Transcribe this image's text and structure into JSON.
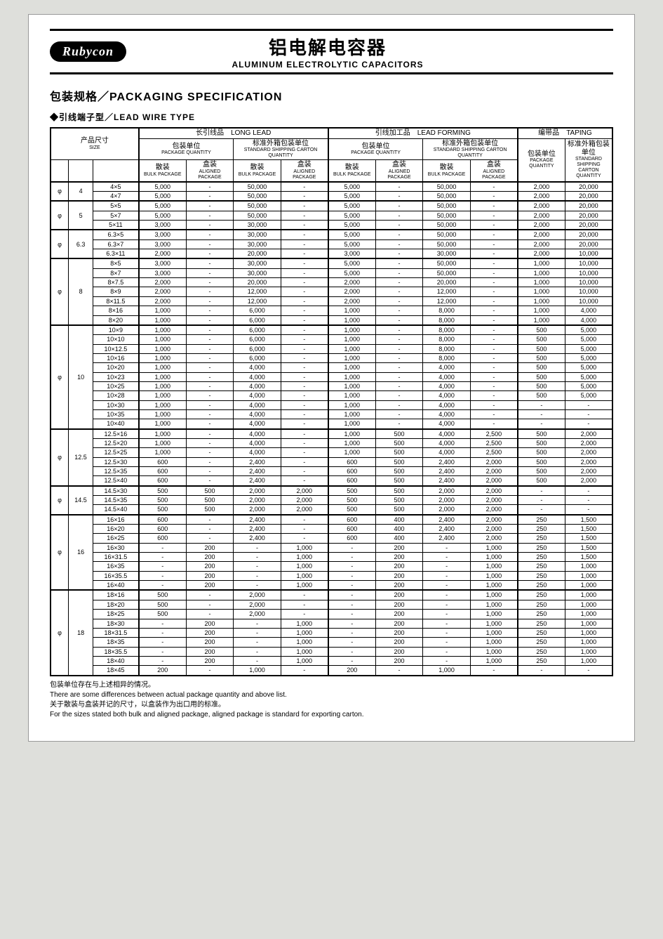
{
  "brand": "Rubycon",
  "title_cn": "铝电解电容器",
  "title_en": "ALUMINUM ELECTROLYTIC CAPACITORS",
  "section_title": "包装规格／PACKAGING SPECIFICATION",
  "sub_title": "◆引线端子型／LEAD WIRE TYPE",
  "headers": {
    "size_cn": "产品尺寸",
    "size_en": "SIZE",
    "long_lead_cn": "长引线品",
    "long_lead_en": "LONG LEAD",
    "lead_forming_cn": "引线加工品",
    "lead_forming_en": "LEAD FORMING",
    "taping_cn": "编带品",
    "taping_en": "TAPING",
    "pkg_qty_cn": "包装单位",
    "pkg_qty_en": "PACKAGE QUANTITY",
    "ship_qty_cn": "标准外箱包装单位",
    "ship_qty_en": "STANDARD SHIPPING CARTON QUANTITY",
    "tape_pkg_cn": "包装单位",
    "tape_pkg_en": "PACKAGE QUANTITY",
    "tape_ship_cn": "标准外箱包装单位",
    "tape_ship_en": "STANDARD SHIPPING CARTON QUANTITY",
    "bulk_cn": "散装",
    "bulk_en": "BULK PACKAGE",
    "aligned_cn": "盒装",
    "aligned_en": "ALIGNED PACKAGE"
  },
  "groups": [
    {
      "phi": "φ",
      "dia": "4",
      "rows": [
        {
          "size": "4×5",
          "v": [
            "5,000",
            "-",
            "50,000",
            "-",
            "5,000",
            "-",
            "50,000",
            "-",
            "2,000",
            "20,000"
          ]
        },
        {
          "size": "4×7",
          "v": [
            "5,000",
            "-",
            "50,000",
            "-",
            "5,000",
            "-",
            "50,000",
            "-",
            "2,000",
            "20,000"
          ]
        }
      ]
    },
    {
      "phi": "φ",
      "dia": "5",
      "rows": [
        {
          "size": "5×5",
          "v": [
            "5,000",
            "-",
            "50,000",
            "-",
            "5,000",
            "-",
            "50,000",
            "-",
            "2,000",
            "20,000"
          ]
        },
        {
          "size": "5×7",
          "v": [
            "5,000",
            "-",
            "50,000",
            "-",
            "5,000",
            "-",
            "50,000",
            "-",
            "2,000",
            "20,000"
          ]
        },
        {
          "size": "5×11",
          "v": [
            "3,000",
            "-",
            "30,000",
            "-",
            "5,000",
            "-",
            "50,000",
            "-",
            "2,000",
            "20,000"
          ]
        }
      ]
    },
    {
      "phi": "φ",
      "dia": "6.3",
      "rows": [
        {
          "size": "6.3×5",
          "v": [
            "3,000",
            "-",
            "30,000",
            "-",
            "5,000",
            "-",
            "50,000",
            "-",
            "2,000",
            "20,000"
          ]
        },
        {
          "size": "6.3×7",
          "v": [
            "3,000",
            "-",
            "30,000",
            "-",
            "5,000",
            "-",
            "50,000",
            "-",
            "2,000",
            "20,000"
          ]
        },
        {
          "size": "6.3×11",
          "v": [
            "2,000",
            "-",
            "20,000",
            "-",
            "3,000",
            "-",
            "30,000",
            "-",
            "2,000",
            "10,000"
          ]
        }
      ]
    },
    {
      "phi": "φ",
      "dia": "8",
      "rows": [
        {
          "size": "8×5",
          "v": [
            "3,000",
            "-",
            "30,000",
            "-",
            "5,000",
            "-",
            "50,000",
            "-",
            "1,000",
            "10,000"
          ]
        },
        {
          "size": "8×7",
          "v": [
            "3,000",
            "-",
            "30,000",
            "-",
            "5,000",
            "-",
            "50,000",
            "-",
            "1,000",
            "10,000"
          ]
        },
        {
          "size": "8×7.5",
          "v": [
            "2,000",
            "-",
            "20,000",
            "-",
            "2,000",
            "-",
            "20,000",
            "-",
            "1,000",
            "10,000"
          ]
        },
        {
          "size": "8×9",
          "v": [
            "2,000",
            "-",
            "12,000",
            "-",
            "2,000",
            "-",
            "12,000",
            "-",
            "1,000",
            "10,000"
          ]
        },
        {
          "size": "8×11.5",
          "v": [
            "2,000",
            "-",
            "12,000",
            "-",
            "2,000",
            "-",
            "12,000",
            "-",
            "1,000",
            "10,000"
          ]
        },
        {
          "size": "8×16",
          "v": [
            "1,000",
            "-",
            "6,000",
            "-",
            "1,000",
            "-",
            "8,000",
            "-",
            "1,000",
            "4,000"
          ]
        },
        {
          "size": "8×20",
          "v": [
            "1,000",
            "-",
            "6,000",
            "-",
            "1,000",
            "-",
            "8,000",
            "-",
            "1,000",
            "4,000"
          ]
        }
      ]
    },
    {
      "phi": "φ",
      "dia": "10",
      "rows": [
        {
          "size": "10×9",
          "v": [
            "1,000",
            "-",
            "6,000",
            "-",
            "1,000",
            "-",
            "8,000",
            "-",
            "500",
            "5,000"
          ]
        },
        {
          "size": "10×10",
          "v": [
            "1,000",
            "-",
            "6,000",
            "-",
            "1,000",
            "-",
            "8,000",
            "-",
            "500",
            "5,000"
          ]
        },
        {
          "size": "10×12.5",
          "v": [
            "1,000",
            "-",
            "6,000",
            "-",
            "1,000",
            "-",
            "8,000",
            "-",
            "500",
            "5,000"
          ]
        },
        {
          "size": "10×16",
          "v": [
            "1,000",
            "-",
            "6,000",
            "-",
            "1,000",
            "-",
            "8,000",
            "-",
            "500",
            "5,000"
          ]
        },
        {
          "size": "10×20",
          "v": [
            "1,000",
            "-",
            "4,000",
            "-",
            "1,000",
            "-",
            "4,000",
            "-",
            "500",
            "5,000"
          ]
        },
        {
          "size": "10×23",
          "v": [
            "1,000",
            "-",
            "4,000",
            "-",
            "1,000",
            "-",
            "4,000",
            "-",
            "500",
            "5,000"
          ]
        },
        {
          "size": "10×25",
          "v": [
            "1,000",
            "-",
            "4,000",
            "-",
            "1,000",
            "-",
            "4,000",
            "-",
            "500",
            "5,000"
          ]
        },
        {
          "size": "10×28",
          "v": [
            "1,000",
            "-",
            "4,000",
            "-",
            "1,000",
            "-",
            "4,000",
            "-",
            "500",
            "5,000"
          ]
        },
        {
          "size": "10×30",
          "v": [
            "1,000",
            "-",
            "4,000",
            "-",
            "1,000",
            "-",
            "4,000",
            "-",
            "-",
            "-"
          ]
        },
        {
          "size": "10×35",
          "v": [
            "1,000",
            "-",
            "4,000",
            "-",
            "1,000",
            "-",
            "4,000",
            "-",
            "-",
            "-"
          ]
        },
        {
          "size": "10×40",
          "v": [
            "1,000",
            "-",
            "4,000",
            "-",
            "1,000",
            "-",
            "4,000",
            "-",
            "-",
            "-"
          ]
        }
      ]
    },
    {
      "phi": "φ",
      "dia": "12.5",
      "rows": [
        {
          "size": "12.5×16",
          "v": [
            "1,000",
            "-",
            "4,000",
            "-",
            "1,000",
            "500",
            "4,000",
            "2,500",
            "500",
            "2,000"
          ]
        },
        {
          "size": "12.5×20",
          "v": [
            "1,000",
            "-",
            "4,000",
            "-",
            "1,000",
            "500",
            "4,000",
            "2,500",
            "500",
            "2,000"
          ]
        },
        {
          "size": "12.5×25",
          "v": [
            "1,000",
            "-",
            "4,000",
            "-",
            "1,000",
            "500",
            "4,000",
            "2,500",
            "500",
            "2,000"
          ]
        },
        {
          "size": "12.5×30",
          "v": [
            "600",
            "-",
            "2,400",
            "-",
            "600",
            "500",
            "2,400",
            "2,000",
            "500",
            "2,000"
          ]
        },
        {
          "size": "12.5×35",
          "v": [
            "600",
            "-",
            "2,400",
            "-",
            "600",
            "500",
            "2,400",
            "2,000",
            "500",
            "2,000"
          ]
        },
        {
          "size": "12.5×40",
          "v": [
            "600",
            "-",
            "2,400",
            "-",
            "600",
            "500",
            "2,400",
            "2,000",
            "500",
            "2,000"
          ]
        }
      ]
    },
    {
      "phi": "φ",
      "dia": "14.5",
      "rows": [
        {
          "size": "14.5×30",
          "v": [
            "500",
            "500",
            "2,000",
            "2,000",
            "500",
            "500",
            "2,000",
            "2,000",
            "-",
            "-"
          ]
        },
        {
          "size": "14.5×35",
          "v": [
            "500",
            "500",
            "2,000",
            "2,000",
            "500",
            "500",
            "2,000",
            "2,000",
            "-",
            "-"
          ]
        },
        {
          "size": "14.5×40",
          "v": [
            "500",
            "500",
            "2,000",
            "2,000",
            "500",
            "500",
            "2,000",
            "2,000",
            "-",
            "-"
          ]
        }
      ]
    },
    {
      "phi": "φ",
      "dia": "16",
      "rows": [
        {
          "size": "16×16",
          "v": [
            "600",
            "-",
            "2,400",
            "-",
            "600",
            "400",
            "2,400",
            "2,000",
            "250",
            "1,500"
          ]
        },
        {
          "size": "16×20",
          "v": [
            "600",
            "-",
            "2,400",
            "-",
            "600",
            "400",
            "2,400",
            "2,000",
            "250",
            "1,500"
          ]
        },
        {
          "size": "16×25",
          "v": [
            "600",
            "-",
            "2,400",
            "-",
            "600",
            "400",
            "2,400",
            "2,000",
            "250",
            "1,500"
          ]
        },
        {
          "size": "16×30",
          "v": [
            "-",
            "200",
            "-",
            "1,000",
            "-",
            "200",
            "-",
            "1,000",
            "250",
            "1,500"
          ]
        },
        {
          "size": "16×31.5",
          "v": [
            "-",
            "200",
            "-",
            "1,000",
            "-",
            "200",
            "-",
            "1,000",
            "250",
            "1,500"
          ]
        },
        {
          "size": "16×35",
          "v": [
            "-",
            "200",
            "-",
            "1,000",
            "-",
            "200",
            "-",
            "1,000",
            "250",
            "1,000"
          ]
        },
        {
          "size": "16×35.5",
          "v": [
            "-",
            "200",
            "-",
            "1,000",
            "-",
            "200",
            "-",
            "1,000",
            "250",
            "1,000"
          ]
        },
        {
          "size": "16×40",
          "v": [
            "-",
            "200",
            "-",
            "1,000",
            "-",
            "200",
            "-",
            "1,000",
            "250",
            "1,000"
          ]
        }
      ]
    },
    {
      "phi": "φ",
      "dia": "18",
      "rows": [
        {
          "size": "18×16",
          "v": [
            "500",
            "-",
            "2,000",
            "-",
            "-",
            "200",
            "-",
            "1,000",
            "250",
            "1,000"
          ]
        },
        {
          "size": "18×20",
          "v": [
            "500",
            "-",
            "2,000",
            "-",
            "-",
            "200",
            "-",
            "1,000",
            "250",
            "1,000"
          ]
        },
        {
          "size": "18×25",
          "v": [
            "500",
            "-",
            "2,000",
            "-",
            "-",
            "200",
            "-",
            "1,000",
            "250",
            "1,000"
          ]
        },
        {
          "size": "18×30",
          "v": [
            "-",
            "200",
            "-",
            "1,000",
            "-",
            "200",
            "-",
            "1,000",
            "250",
            "1,000"
          ]
        },
        {
          "size": "18×31.5",
          "v": [
            "-",
            "200",
            "-",
            "1,000",
            "-",
            "200",
            "-",
            "1,000",
            "250",
            "1,000"
          ]
        },
        {
          "size": "18×35",
          "v": [
            "-",
            "200",
            "-",
            "1,000",
            "-",
            "200",
            "-",
            "1,000",
            "250",
            "1,000"
          ]
        },
        {
          "size": "18×35.5",
          "v": [
            "-",
            "200",
            "-",
            "1,000",
            "-",
            "200",
            "-",
            "1,000",
            "250",
            "1,000"
          ]
        },
        {
          "size": "18×40",
          "v": [
            "-",
            "200",
            "-",
            "1,000",
            "-",
            "200",
            "-",
            "1,000",
            "250",
            "1,000"
          ]
        },
        {
          "size": "18×45",
          "v": [
            "200",
            "-",
            "1,000",
            "-",
            "200",
            "-",
            "1,000",
            "-",
            "-",
            "-"
          ]
        }
      ]
    }
  ],
  "notes": [
    "包装单位存在与上述相异的情况。",
    "There are some differences between actual package quantity and above list.",
    "关于散装与盒装并记的尺寸，以盒装作为出口用的标准。",
    "For the sizes stated both bulk and aligned package, aligned package is standard for exporting carton."
  ]
}
